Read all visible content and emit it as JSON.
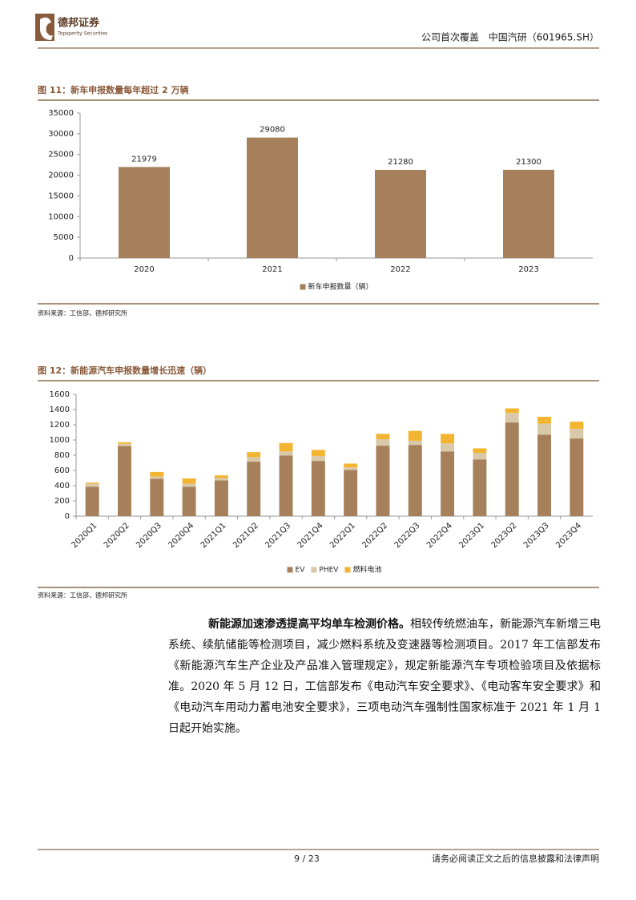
{
  "header": {
    "logo_cn": "德邦证券",
    "logo_en": "Topsperity Securities",
    "report_type": "公司首次覆盖",
    "company": "中国汽研（601965.SH）"
  },
  "chart_data": [
    {
      "type": "bar",
      "title": "图 11：新车申报数量每年超过 2 万辆",
      "source": "资料来源：工信部，德邦研究所",
      "categories": [
        "2020",
        "2021",
        "2022",
        "2023"
      ],
      "series": [
        {
          "name": "新车申报数量（辆）",
          "color": "#a5805a",
          "values": [
            21979,
            29080,
            21280,
            21300
          ]
        }
      ],
      "ylim": [
        0,
        35000
      ],
      "yticks": [
        0,
        5000,
        10000,
        15000,
        20000,
        25000,
        30000,
        35000
      ],
      "data_labels": true,
      "legend": "bottom"
    },
    {
      "type": "bar",
      "stacked": true,
      "title": "图 12：新能源汽车申报数量增长迅速（辆）",
      "source": "资料来源：工信部，德邦研究所",
      "categories": [
        "2020Q1",
        "2020Q2",
        "2020Q3",
        "2020Q4",
        "2021Q1",
        "2021Q2",
        "2021Q3",
        "2021Q4",
        "2022Q1",
        "2022Q2",
        "2022Q3",
        "2022Q4",
        "2023Q1",
        "2023Q2",
        "2023Q3",
        "2023Q4"
      ],
      "series": [
        {
          "name": "EV",
          "color": "#a5805a",
          "values": [
            385,
            920,
            490,
            385,
            470,
            715,
            795,
            725,
            605,
            925,
            935,
            850,
            745,
            1230,
            1070,
            1020
          ]
        },
        {
          "name": "PHEV",
          "color": "#d9c9a9",
          "values": [
            40,
            30,
            30,
            40,
            30,
            60,
            55,
            65,
            35,
            85,
            55,
            105,
            85,
            125,
            145,
            125
          ]
        },
        {
          "name": "燃料电池",
          "color": "#f2b431",
          "values": [
            15,
            20,
            60,
            70,
            35,
            65,
            110,
            80,
            50,
            70,
            130,
            125,
            60,
            60,
            90,
            95
          ]
        }
      ],
      "ylim": [
        0,
        1600
      ],
      "yticks": [
        0,
        200,
        400,
        600,
        800,
        1000,
        1200,
        1400,
        1600
      ],
      "data_labels": false,
      "legend": "bottom"
    }
  ],
  "body": {
    "lead": "新能源加速渗透提高平均单车检测价格。",
    "text": "相较传统燃油车，新能源汽车新增三电系统、续航储能等检测项目，减少燃料系统及变速器等检测项目。2017 年工信部发布《新能源汽车生产企业及产品准入管理规定》，规定新能源汽车专项检验项目及依据标准。2020 年 5 月 12 日，工信部发布《电动汽车安全要求》、《电动客车安全要求》和《电动汽车用动力蓄电池安全要求》，三项电动汽车强制性国家标准于 2021 年 1 月 1 日起开始实施。"
  },
  "footer": {
    "page": "9 / 23",
    "disclaimer": "请务必阅读正文之后的信息披露和法律声明"
  }
}
